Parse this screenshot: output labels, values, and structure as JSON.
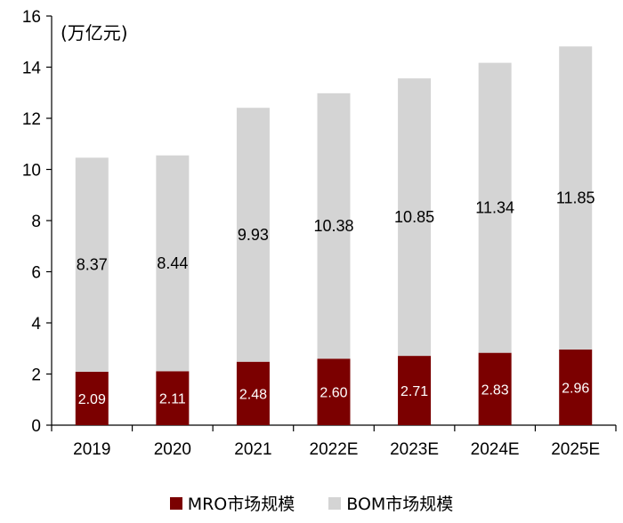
{
  "chart_data": {
    "type": "bar",
    "stacked": true,
    "categories": [
      "2019",
      "2020",
      "2021",
      "2022E",
      "2023E",
      "2024E",
      "2025E"
    ],
    "series": [
      {
        "name": "MRO市场规模",
        "values": [
          2.09,
          2.11,
          2.48,
          2.6,
          2.71,
          2.83,
          2.96
        ],
        "labels": [
          "2.09",
          "2.11",
          "2.48",
          "2.60",
          "2.71",
          "2.83",
          "2.96"
        ],
        "color": "#7b0000"
      },
      {
        "name": "BOM市场规模",
        "values": [
          8.37,
          8.44,
          9.93,
          10.38,
          10.85,
          11.34,
          11.85
        ],
        "labels": [
          "8.37",
          "8.44",
          "9.93",
          "10.38",
          "10.85",
          "11.34",
          "11.85"
        ],
        "color": "#d4d4d4"
      }
    ],
    "ylim": [
      0,
      16
    ],
    "yticks": [
      "0",
      "2",
      "4",
      "6",
      "8",
      "10",
      "12",
      "14",
      "16"
    ],
    "unit_label": "(万亿元)",
    "legend_position": "bottom",
    "grid": false
  }
}
